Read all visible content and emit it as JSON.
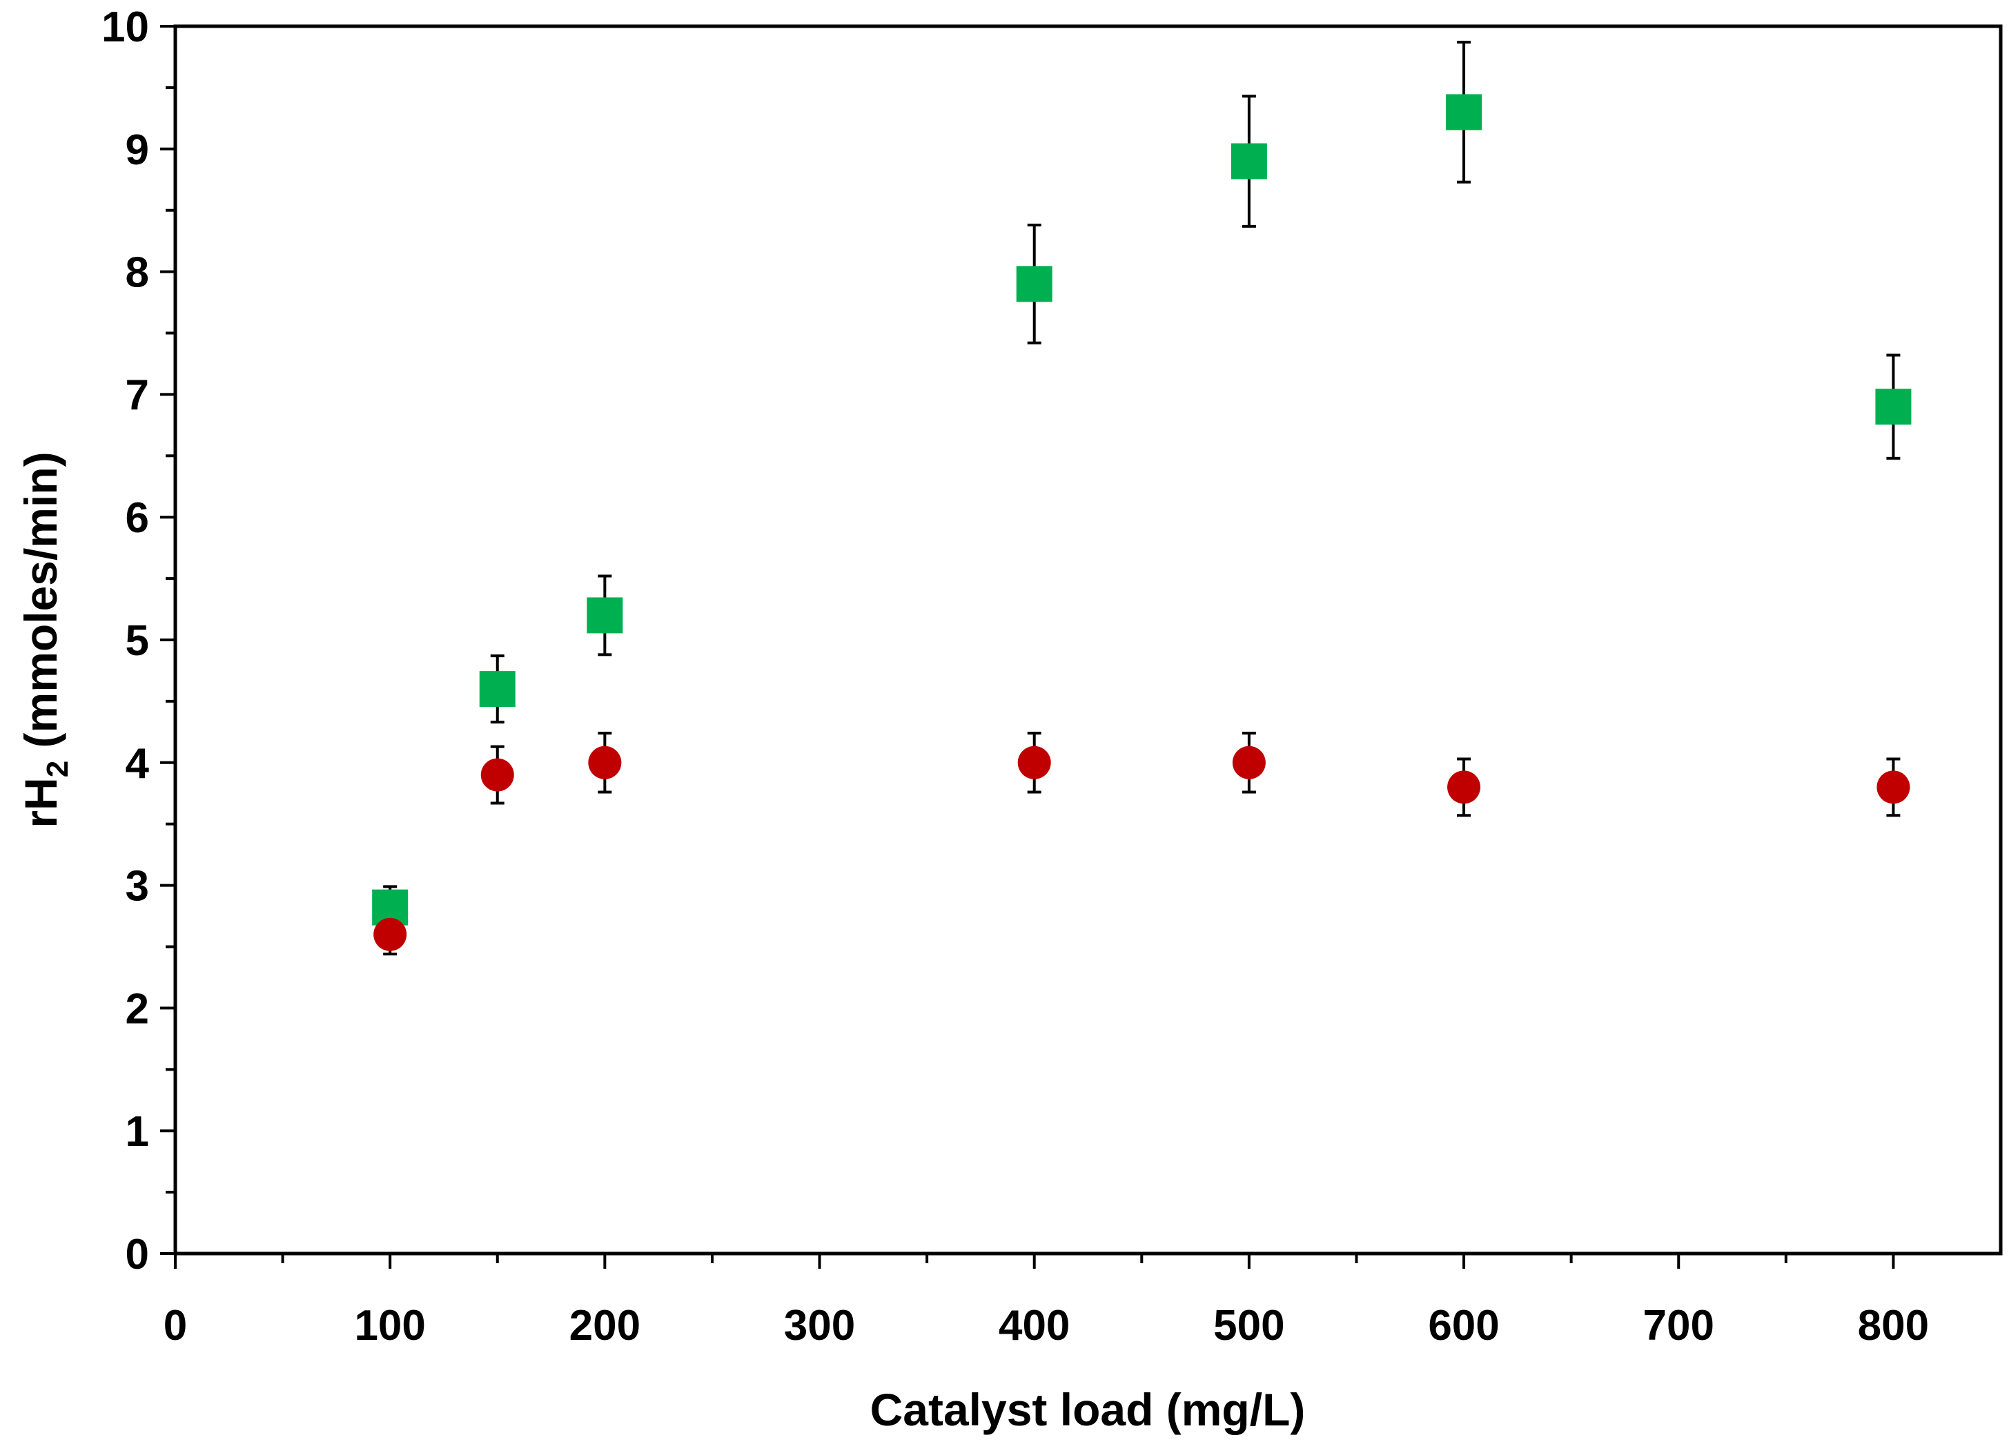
{
  "chart_data": {
    "type": "scatter",
    "title": "",
    "xlabel": "Catalyst load (mg/L)",
    "ylabel": {
      "prefix": "rH",
      "subscript": "2",
      "suffix": " (mmoles/min)"
    },
    "xlim": [
      0,
      850
    ],
    "ylim": [
      0,
      10
    ],
    "x_major_ticks": [
      0,
      100,
      200,
      300,
      400,
      500,
      600,
      700,
      800
    ],
    "x_tick_labels": [
      "0",
      "100",
      "200",
      "300",
      "400",
      "500",
      "600",
      "700",
      "800"
    ],
    "x_minor_step": 50,
    "y_major_ticks": [
      0,
      1,
      2,
      3,
      4,
      5,
      6,
      7,
      8,
      9,
      10
    ],
    "y_tick_labels": [
      "0",
      "1",
      "2",
      "3",
      "4",
      "5",
      "6",
      "7",
      "8",
      "9",
      "10"
    ],
    "y_minor_step": 0.5,
    "grid": false,
    "legend": null,
    "series": [
      {
        "name": "green squares",
        "marker": "square",
        "color": "#00b050",
        "x": [
          100,
          150,
          200,
          400,
          500,
          600,
          800
        ],
        "y": [
          2.82,
          4.6,
          5.2,
          7.9,
          8.9,
          9.3,
          6.9
        ],
        "err": [
          0.17,
          0.27,
          0.32,
          0.48,
          0.53,
          0.57,
          0.42
        ]
      },
      {
        "name": "red circles",
        "marker": "circle",
        "color": "#c00000",
        "x": [
          100,
          150,
          200,
          400,
          500,
          600,
          800
        ],
        "y": [
          2.6,
          3.9,
          4.0,
          4.0,
          4.0,
          3.8,
          3.8
        ],
        "err": [
          0.16,
          0.23,
          0.24,
          0.24,
          0.24,
          0.23,
          0.23
        ]
      }
    ]
  }
}
